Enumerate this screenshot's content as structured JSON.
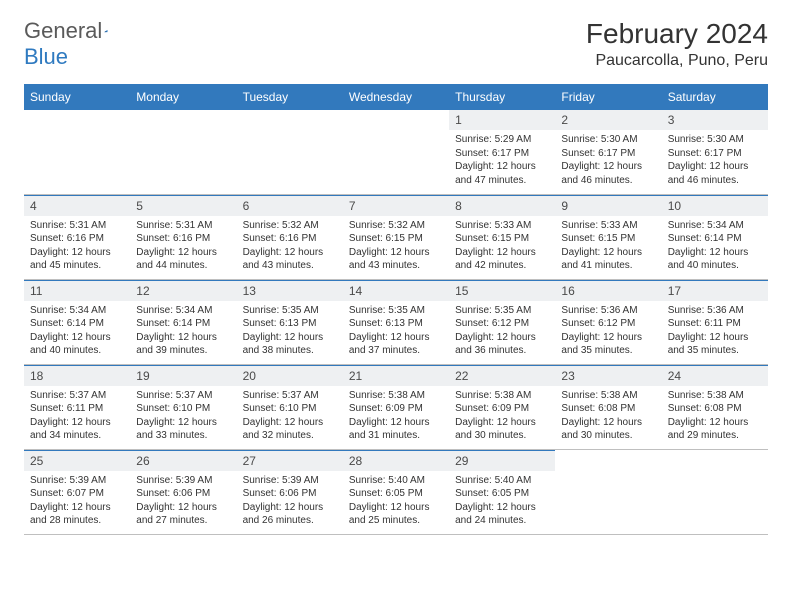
{
  "logo": {
    "text_a": "General",
    "text_b": "Blue"
  },
  "title": "February 2024",
  "location": "Paucarcolla, Puno, Peru",
  "header_bg": "#3279bd",
  "header_fg": "#ffffff",
  "daynum_bg": "#eef0f2",
  "border_color": "#3279bd",
  "days": [
    "Sunday",
    "Monday",
    "Tuesday",
    "Wednesday",
    "Thursday",
    "Friday",
    "Saturday"
  ],
  "weeks": [
    [
      null,
      null,
      null,
      null,
      {
        "n": "1",
        "sunrise": "5:29 AM",
        "sunset": "6:17 PM",
        "daylight": "12 hours and 47 minutes."
      },
      {
        "n": "2",
        "sunrise": "5:30 AM",
        "sunset": "6:17 PM",
        "daylight": "12 hours and 46 minutes."
      },
      {
        "n": "3",
        "sunrise": "5:30 AM",
        "sunset": "6:17 PM",
        "daylight": "12 hours and 46 minutes."
      }
    ],
    [
      {
        "n": "4",
        "sunrise": "5:31 AM",
        "sunset": "6:16 PM",
        "daylight": "12 hours and 45 minutes."
      },
      {
        "n": "5",
        "sunrise": "5:31 AM",
        "sunset": "6:16 PM",
        "daylight": "12 hours and 44 minutes."
      },
      {
        "n": "6",
        "sunrise": "5:32 AM",
        "sunset": "6:16 PM",
        "daylight": "12 hours and 43 minutes."
      },
      {
        "n": "7",
        "sunrise": "5:32 AM",
        "sunset": "6:15 PM",
        "daylight": "12 hours and 43 minutes."
      },
      {
        "n": "8",
        "sunrise": "5:33 AM",
        "sunset": "6:15 PM",
        "daylight": "12 hours and 42 minutes."
      },
      {
        "n": "9",
        "sunrise": "5:33 AM",
        "sunset": "6:15 PM",
        "daylight": "12 hours and 41 minutes."
      },
      {
        "n": "10",
        "sunrise": "5:34 AM",
        "sunset": "6:14 PM",
        "daylight": "12 hours and 40 minutes."
      }
    ],
    [
      {
        "n": "11",
        "sunrise": "5:34 AM",
        "sunset": "6:14 PM",
        "daylight": "12 hours and 40 minutes."
      },
      {
        "n": "12",
        "sunrise": "5:34 AM",
        "sunset": "6:14 PM",
        "daylight": "12 hours and 39 minutes."
      },
      {
        "n": "13",
        "sunrise": "5:35 AM",
        "sunset": "6:13 PM",
        "daylight": "12 hours and 38 minutes."
      },
      {
        "n": "14",
        "sunrise": "5:35 AM",
        "sunset": "6:13 PM",
        "daylight": "12 hours and 37 minutes."
      },
      {
        "n": "15",
        "sunrise": "5:35 AM",
        "sunset": "6:12 PM",
        "daylight": "12 hours and 36 minutes."
      },
      {
        "n": "16",
        "sunrise": "5:36 AM",
        "sunset": "6:12 PM",
        "daylight": "12 hours and 35 minutes."
      },
      {
        "n": "17",
        "sunrise": "5:36 AM",
        "sunset": "6:11 PM",
        "daylight": "12 hours and 35 minutes."
      }
    ],
    [
      {
        "n": "18",
        "sunrise": "5:37 AM",
        "sunset": "6:11 PM",
        "daylight": "12 hours and 34 minutes."
      },
      {
        "n": "19",
        "sunrise": "5:37 AM",
        "sunset": "6:10 PM",
        "daylight": "12 hours and 33 minutes."
      },
      {
        "n": "20",
        "sunrise": "5:37 AM",
        "sunset": "6:10 PM",
        "daylight": "12 hours and 32 minutes."
      },
      {
        "n": "21",
        "sunrise": "5:38 AM",
        "sunset": "6:09 PM",
        "daylight": "12 hours and 31 minutes."
      },
      {
        "n": "22",
        "sunrise": "5:38 AM",
        "sunset": "6:09 PM",
        "daylight": "12 hours and 30 minutes."
      },
      {
        "n": "23",
        "sunrise": "5:38 AM",
        "sunset": "6:08 PM",
        "daylight": "12 hours and 30 minutes."
      },
      {
        "n": "24",
        "sunrise": "5:38 AM",
        "sunset": "6:08 PM",
        "daylight": "12 hours and 29 minutes."
      }
    ],
    [
      {
        "n": "25",
        "sunrise": "5:39 AM",
        "sunset": "6:07 PM",
        "daylight": "12 hours and 28 minutes."
      },
      {
        "n": "26",
        "sunrise": "5:39 AM",
        "sunset": "6:06 PM",
        "daylight": "12 hours and 27 minutes."
      },
      {
        "n": "27",
        "sunrise": "5:39 AM",
        "sunset": "6:06 PM",
        "daylight": "12 hours and 26 minutes."
      },
      {
        "n": "28",
        "sunrise": "5:40 AM",
        "sunset": "6:05 PM",
        "daylight": "12 hours and 25 minutes."
      },
      {
        "n": "29",
        "sunrise": "5:40 AM",
        "sunset": "6:05 PM",
        "daylight": "12 hours and 24 minutes."
      },
      null,
      null
    ]
  ],
  "labels": {
    "sunrise": "Sunrise:",
    "sunset": "Sunset:",
    "daylight": "Daylight:"
  }
}
